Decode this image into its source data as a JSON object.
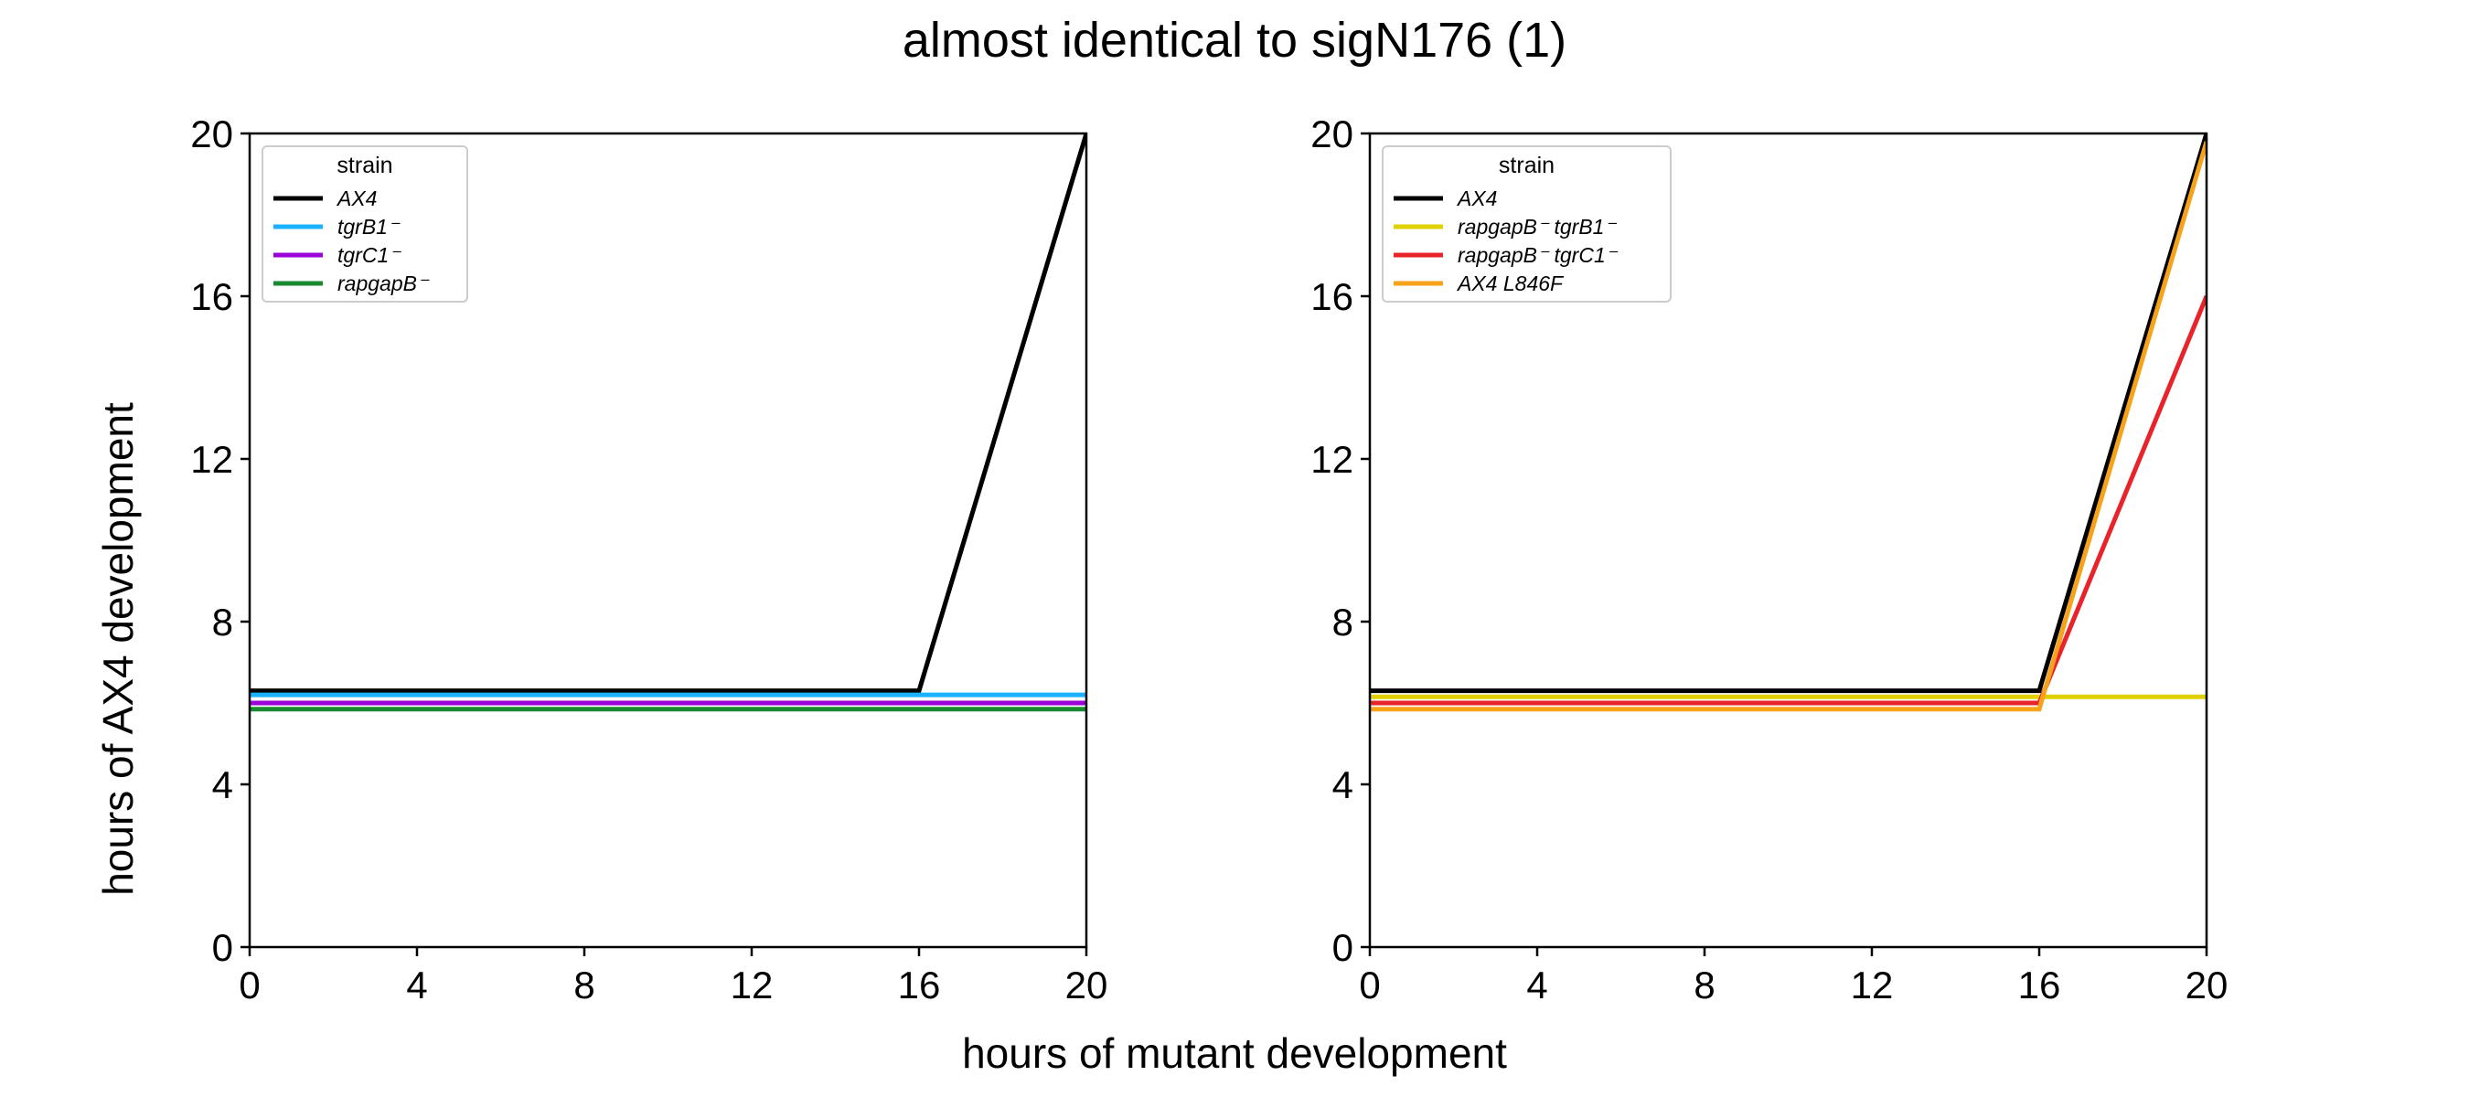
{
  "figure": {
    "title": "almost identical to sigN176 (1)",
    "xlabel": "hours of mutant development",
    "ylabel": "hours of AX4 development"
  },
  "chart_data": [
    {
      "type": "line",
      "xlim": [
        0,
        20
      ],
      "ylim": [
        0,
        20
      ],
      "xticks": [
        0,
        4,
        8,
        12,
        16,
        20
      ],
      "yticks": [
        0,
        4,
        8,
        12,
        16,
        20
      ],
      "grid": false,
      "legend": {
        "title": "strain",
        "position": "top-left"
      },
      "series": [
        {
          "name": "AX4",
          "color": "#000000",
          "x": [
            0,
            16,
            20
          ],
          "y": [
            6.3,
            6.3,
            20
          ]
        },
        {
          "name": "tgrB1⁻",
          "color": "#1ab2ff",
          "x": [
            0,
            16,
            20
          ],
          "y": [
            6.2,
            6.2,
            6.2
          ]
        },
        {
          "name": "tgrC1⁻",
          "color": "#9b00d9",
          "x": [
            0,
            16,
            20
          ],
          "y": [
            6.0,
            6.0,
            6.0
          ]
        },
        {
          "name": "rapgapB⁻",
          "color": "#1a8a32",
          "x": [
            0,
            16,
            20
          ],
          "y": [
            5.85,
            5.85,
            5.85
          ]
        }
      ]
    },
    {
      "type": "line",
      "xlim": [
        0,
        20
      ],
      "ylim": [
        0,
        20
      ],
      "xticks": [
        0,
        4,
        8,
        12,
        16,
        20
      ],
      "yticks": [
        0,
        4,
        8,
        12,
        16,
        20
      ],
      "grid": false,
      "legend": {
        "title": "strain",
        "position": "top-left"
      },
      "series": [
        {
          "name": "AX4",
          "color": "#000000",
          "x": [
            0,
            16,
            20
          ],
          "y": [
            6.3,
            6.3,
            20
          ]
        },
        {
          "name": "rapgapB⁻ tgrB1⁻",
          "color": "#e0d000",
          "x": [
            0,
            16,
            20
          ],
          "y": [
            6.15,
            6.15,
            6.15
          ]
        },
        {
          "name": "rapgapB⁻ tgrC1⁻",
          "color": "#e8242a",
          "x": [
            0,
            16,
            20
          ],
          "y": [
            6.0,
            6.0,
            16
          ]
        },
        {
          "name": "AX4 L846F",
          "color": "#f7a21b",
          "x": [
            0,
            16,
            20
          ],
          "y": [
            5.85,
            5.85,
            19.8
          ]
        }
      ]
    }
  ]
}
